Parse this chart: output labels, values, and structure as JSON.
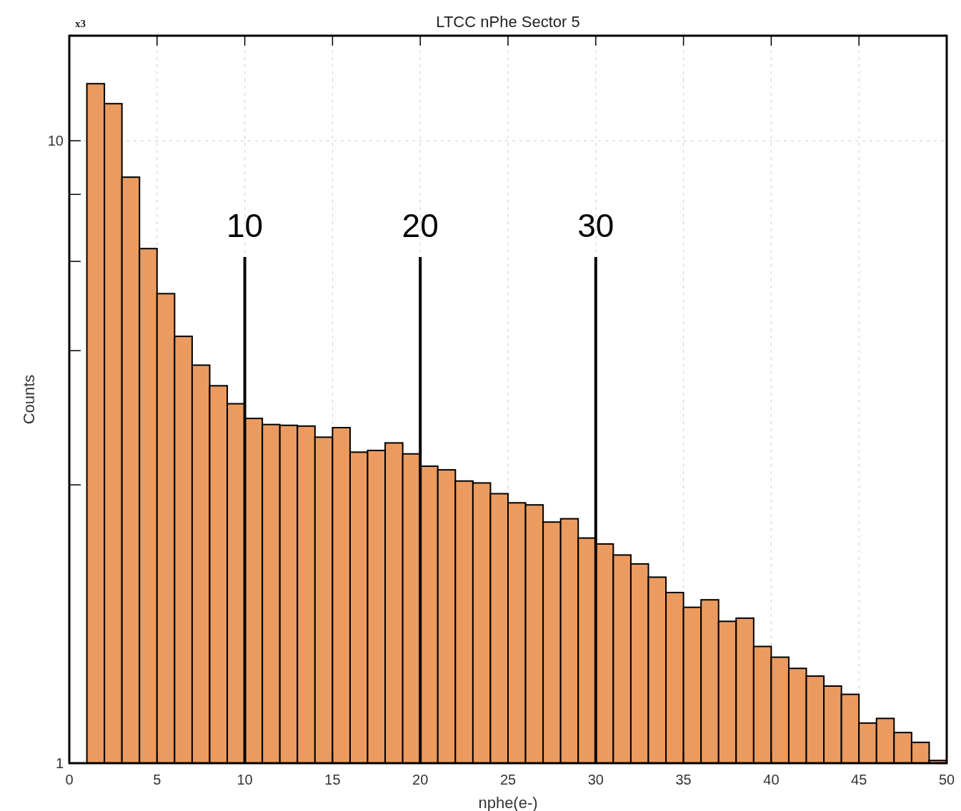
{
  "chart_data": {
    "type": "histogram",
    "title": "LTCC nPhe Sector 5",
    "xlabel": "nphe(e-)",
    "ylabel": "Counts",
    "annotations": [
      "x3"
    ],
    "bins": [
      1,
      2,
      3,
      4,
      5,
      6,
      7,
      8,
      9,
      10,
      11,
      12,
      13,
      14,
      15,
      16,
      17,
      18,
      19,
      20,
      21,
      22,
      23,
      24,
      25,
      26,
      27,
      28,
      29,
      30,
      31,
      32,
      33,
      34,
      35,
      36,
      37,
      38,
      39,
      40,
      41,
      42,
      43,
      44,
      45,
      46,
      47,
      48,
      49,
      50
    ],
    "values": [
      12.35,
      11.47,
      8.74,
      6.71,
      5.68,
      4.85,
      4.36,
      4.04,
      3.78,
      3.58,
      3.5,
      3.49,
      3.48,
      3.34,
      3.46,
      3.16,
      3.18,
      3.27,
      3.14,
      3.0,
      2.96,
      2.84,
      2.82,
      2.71,
      2.62,
      2.6,
      2.44,
      2.47,
      2.3,
      2.25,
      2.16,
      2.09,
      1.99,
      1.88,
      1.78,
      1.83,
      1.69,
      1.71,
      1.54,
      1.48,
      1.42,
      1.38,
      1.33,
      1.29,
      1.16,
      1.18,
      1.12,
      1.08,
      1.01
    ],
    "color": "#eb9b5f",
    "xlim": [
      0,
      50
    ],
    "xticks": [
      0,
      5,
      10,
      15,
      20,
      25,
      30,
      35,
      40,
      45,
      50
    ],
    "ylim": [
      1,
      14.75
    ],
    "yticks": [
      1,
      {
        "value": 2.8,
        "label": null
      },
      {
        "value": 4.6,
        "label": null
      },
      {
        "value": 6.4,
        "label": null
      },
      {
        "value": 8.2,
        "label": null
      },
      10
    ],
    "log": "y",
    "grid": true,
    "ref_lines": [
      {
        "axis": "x",
        "value": 10,
        "label": "10",
        "color": "#000000"
      },
      {
        "axis": "x",
        "value": 20,
        "label": "20",
        "color": "#000000"
      },
      {
        "axis": "x",
        "value": 30,
        "label": "30",
        "color": "#000000"
      }
    ]
  }
}
